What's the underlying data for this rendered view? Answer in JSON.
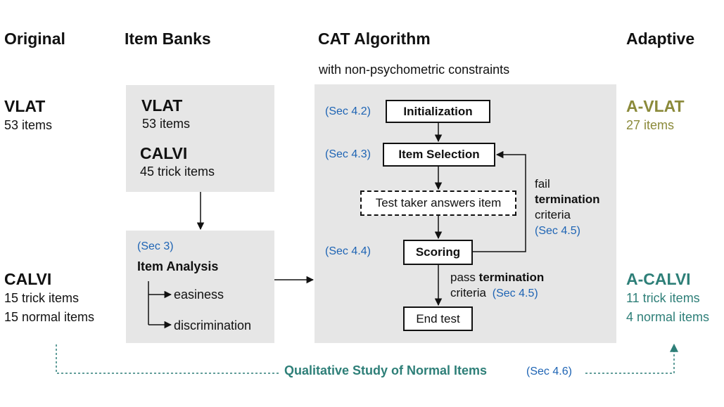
{
  "columns": {
    "original": "Original",
    "item_banks": "Item Banks",
    "cat_algorithm": "CAT Algorithm",
    "cat_subtitle": "with non-psychometric constraints",
    "adaptive": "Adaptive"
  },
  "original": {
    "vlat_title": "VLAT",
    "vlat_items": "53 items",
    "calvi_title": "CALVI",
    "calvi_trick": "15 trick items",
    "calvi_normal": "15 normal items"
  },
  "item_banks": {
    "vlat_title": "VLAT",
    "vlat_items": "53 items",
    "calvi_title": "CALVI",
    "calvi_items": "45 trick items"
  },
  "item_analysis": {
    "ref": "(Sec 3)",
    "title": "Item Analysis",
    "easiness": "easiness",
    "discrimination": "discrimination"
  },
  "cat": {
    "init_ref": "(Sec 4.2)",
    "init_label": "Initialization",
    "selection_ref": "(Sec 4.3)",
    "selection_label": "Item Selection",
    "answer_label": "Test taker answers item",
    "scoring_ref": "(Sec 4.4)",
    "scoring_label": "Scoring",
    "end_label": "End test",
    "fail_word": "fail",
    "fail_termination": "termination",
    "fail_criteria": "criteria",
    "fail_ref": "(Sec 4.5)",
    "pass_word": "pass",
    "pass_termination": "termination",
    "pass_criteria": "criteria",
    "pass_ref": "(Sec 4.5)"
  },
  "adaptive": {
    "avlat_title": "A-VLAT",
    "avlat_items": "27 items",
    "acalvi_title": "A-CALVI",
    "acalvi_trick": "11 trick items",
    "acalvi_normal": "4 normal items"
  },
  "qualitative": {
    "label": "Qualitative Study of Normal Items",
    "ref": "(Sec 4.6)"
  },
  "colors": {
    "olive": "#8b8a3a",
    "teal": "#2e7f78",
    "ref_blue": "#1e64b4",
    "panel_gray": "#e6e6e6"
  }
}
